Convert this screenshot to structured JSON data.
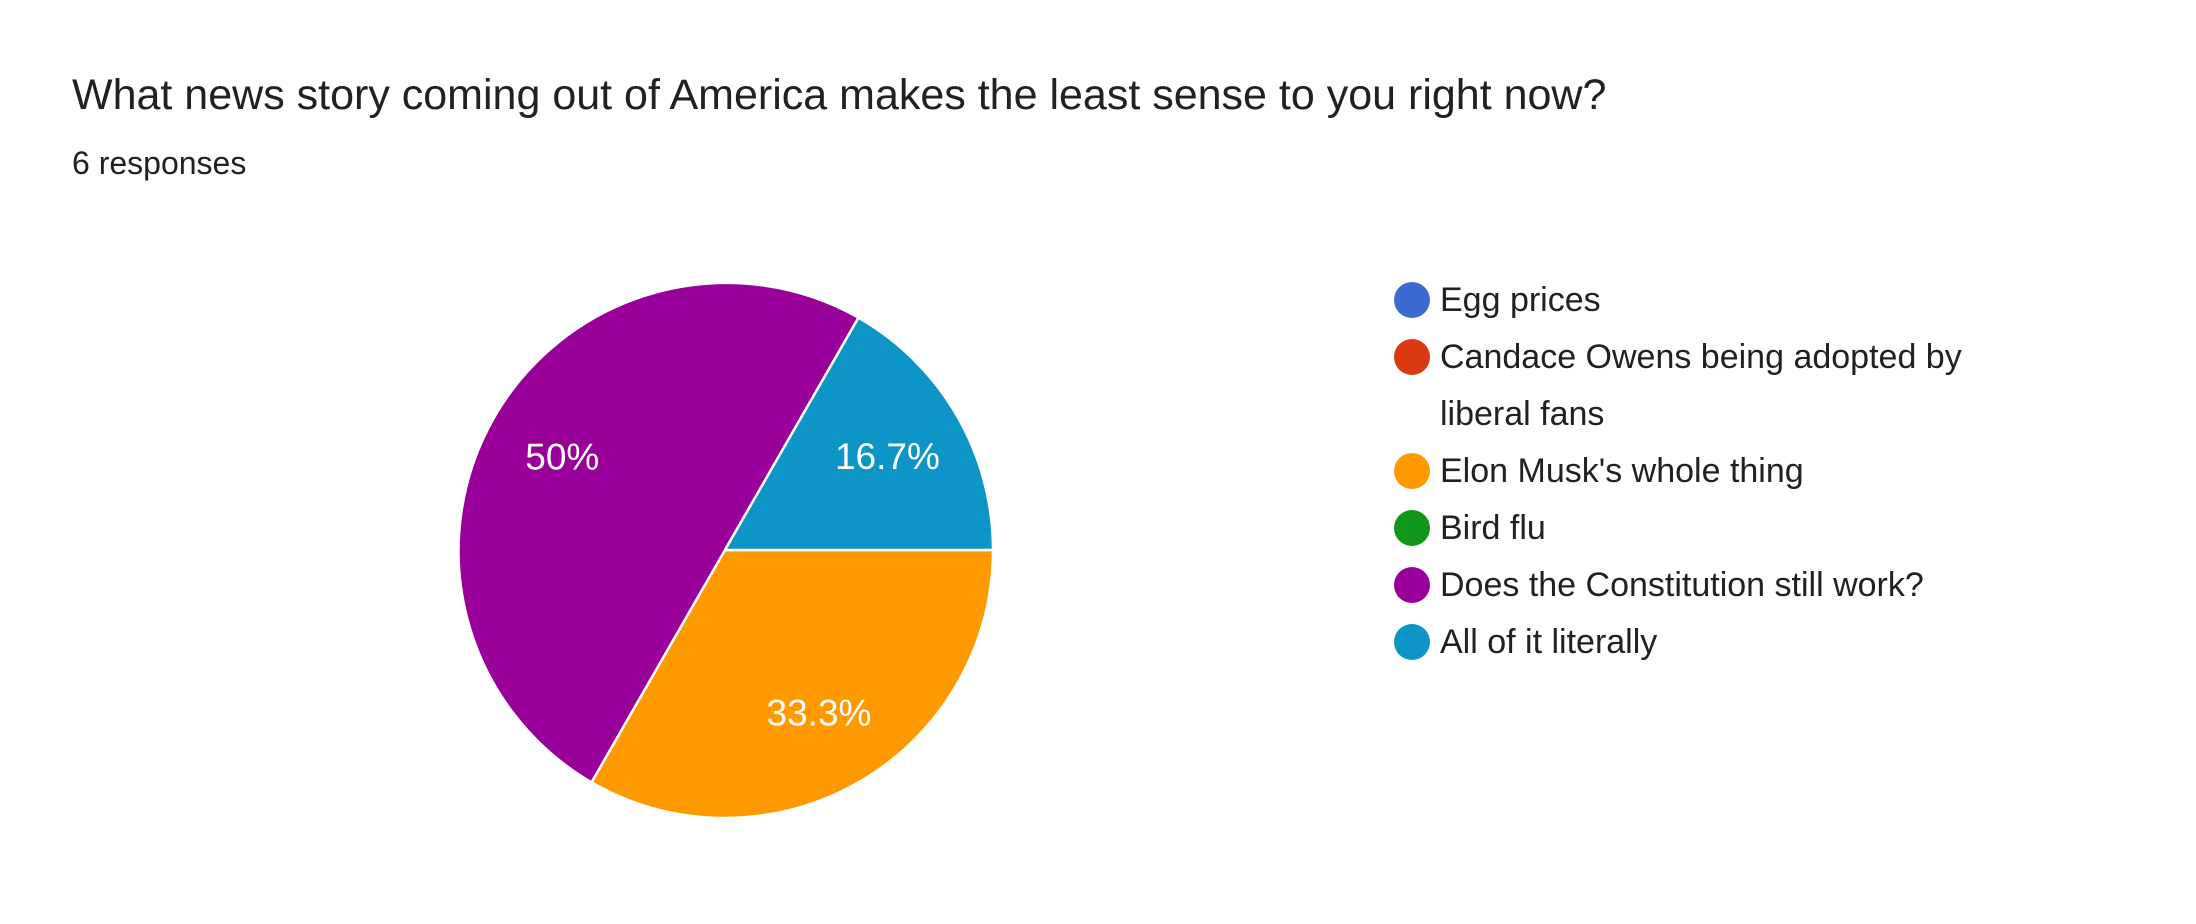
{
  "header": {
    "title": "What news story coming out of America makes the least sense to you right now?",
    "responses_label": "6 responses"
  },
  "chart_data": {
    "type": "pie",
    "title": "What news story coming out of America makes the least sense to you right now?",
    "subtitle": "6 responses",
    "total_responses": 6,
    "categories": [
      "Egg prices",
      "Candace Owens being adopted by liberal fans",
      "Elon Musk's whole thing",
      "Bird flu",
      "Does the Constitution still work?",
      "All of it literally"
    ],
    "values": [
      0,
      0,
      2,
      0,
      3,
      1
    ],
    "percents": [
      0,
      0,
      33.3,
      0,
      50,
      16.7
    ],
    "colors": [
      "#3B6BD0",
      "#DB3912",
      "#FF9900",
      "#109618",
      "#990099",
      "#0C95C6"
    ],
    "slices": [
      {
        "label": "Elon Musk's whole thing",
        "percent": 33.3,
        "display": "33.3%",
        "color": "#FF9900"
      },
      {
        "label": "Does the Constitution still work?",
        "percent": 50,
        "display": "50%",
        "color": "#990099"
      },
      {
        "label": "All of it literally",
        "percent": 16.7,
        "display": "16.7%",
        "color": "#0C95C6"
      }
    ],
    "rotation_deg": 90,
    "legend_position": "right",
    "slice_label_color": "#ffffff",
    "slice_border_color": "#ffffff",
    "background_color": "#ffffff"
  },
  "legend": {
    "items": [
      {
        "label": "Egg prices",
        "color": "#3B6BD0"
      },
      {
        "label": "Candace Owens being adopted by liberal fans",
        "color": "#DB3912"
      },
      {
        "label": "Elon Musk's whole thing",
        "color": "#FF9900"
      },
      {
        "label": "Bird flu",
        "color": "#109618"
      },
      {
        "label": "Does the Constitution still work?",
        "color": "#990099"
      },
      {
        "label": "All of it literally",
        "color": "#0C95C6"
      }
    ]
  }
}
